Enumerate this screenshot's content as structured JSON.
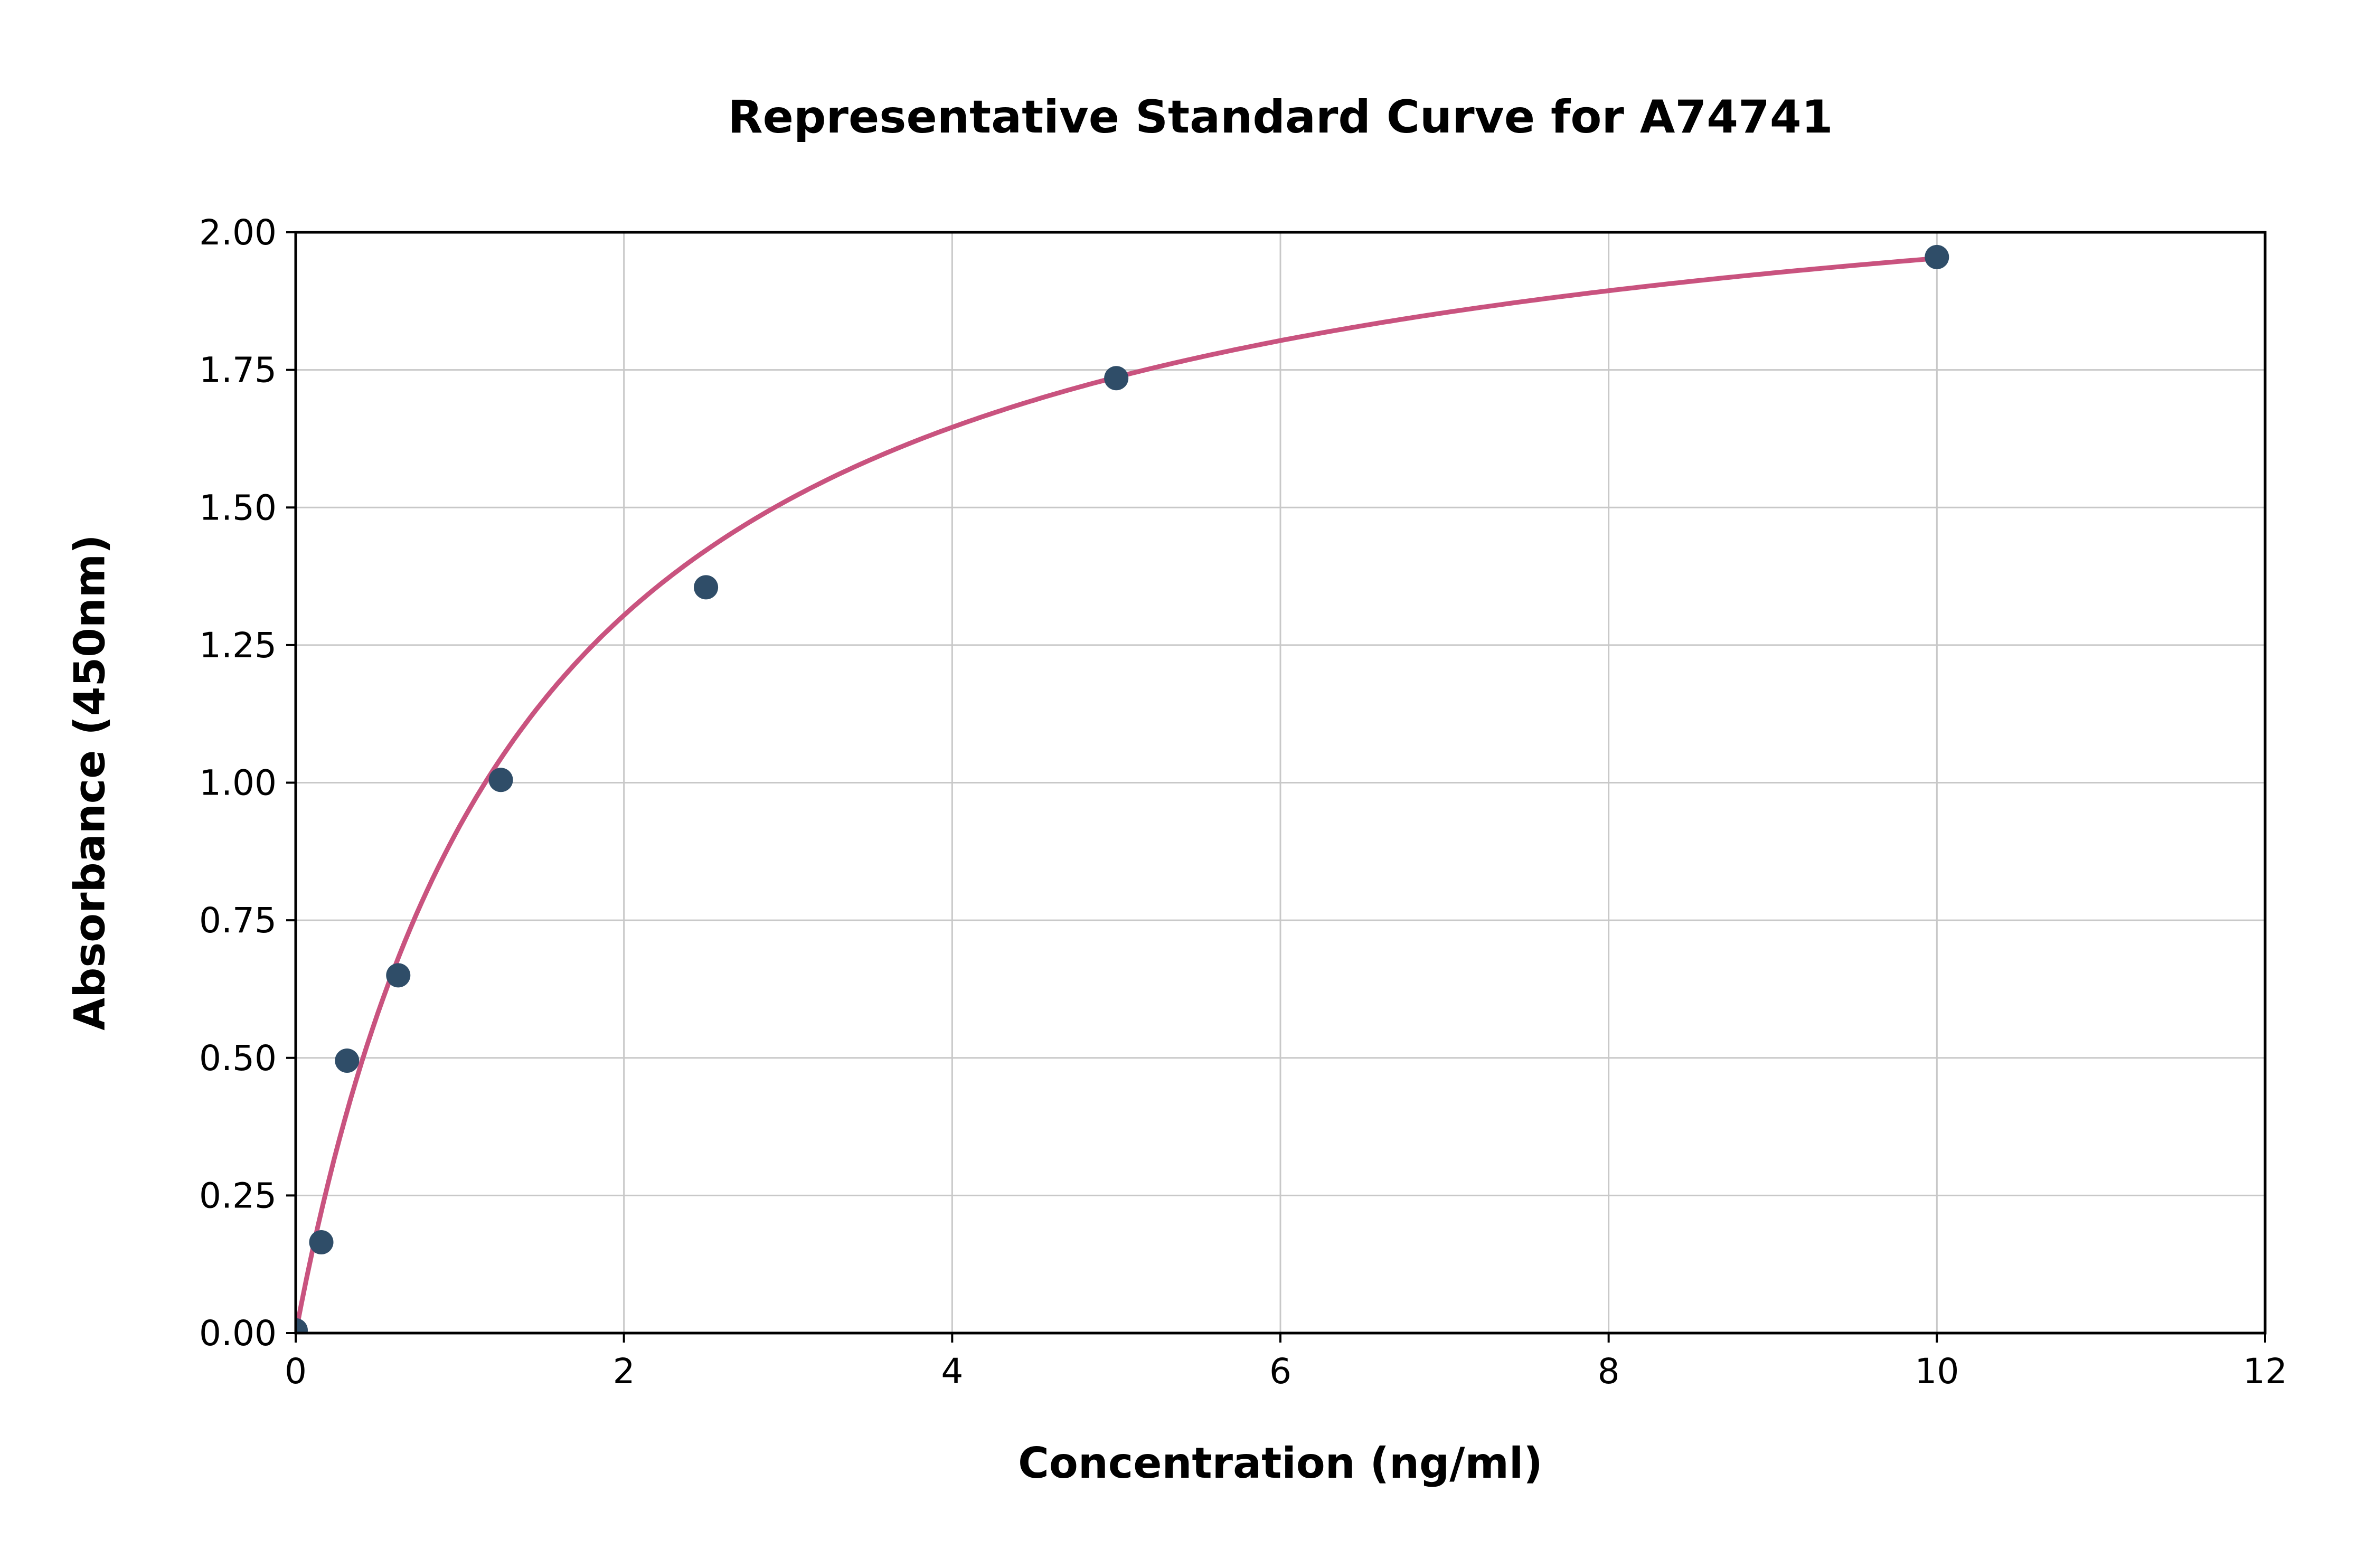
{
  "chart_data": {
    "type": "scatter",
    "title": "Representative Standard Curve for A74741",
    "xlabel": "Concentration (ng/ml)",
    "ylabel": "Absorbance (450nm)",
    "xlim": [
      0,
      12
    ],
    "ylim": [
      0,
      2.0
    ],
    "grid": true,
    "legend": "none",
    "xticks": {
      "values": [
        0,
        2,
        4,
        6,
        8,
        10,
        12
      ],
      "labels": [
        "0",
        "2",
        "4",
        "6",
        "8",
        "10",
        "12"
      ]
    },
    "yticks": {
      "values": [
        0,
        0.25,
        0.5,
        0.75,
        1.0,
        1.25,
        1.5,
        1.75,
        2.0
      ],
      "labels": [
        "0.00",
        "0.25",
        "0.50",
        "0.75",
        "1.00",
        "1.25",
        "1.50",
        "1.75",
        "2.00"
      ]
    },
    "series": [
      {
        "name": "standard-points",
        "type": "scatter",
        "color": "#2f4d68",
        "marker_radius": 23,
        "points": [
          [
            0,
            0.005
          ],
          [
            0.156,
            0.165
          ],
          [
            0.313,
            0.495
          ],
          [
            0.625,
            0.65
          ],
          [
            1.25,
            1.005
          ],
          [
            2.5,
            1.355
          ],
          [
            5,
            1.735
          ],
          [
            10,
            1.955
          ]
        ]
      },
      {
        "name": "fit-curve",
        "type": "line",
        "color": "#c9537f",
        "model": "y = a*x/(b+x)",
        "a": 2.23,
        "b": 1.42,
        "x_range": [
          0,
          10
        ],
        "stroke_width": 9
      }
    ],
    "colors": {
      "points": "#2f4d68",
      "curve": "#c9537f",
      "grid": "#c8c8c8",
      "frame": "#000000",
      "background": "#ffffff"
    }
  }
}
